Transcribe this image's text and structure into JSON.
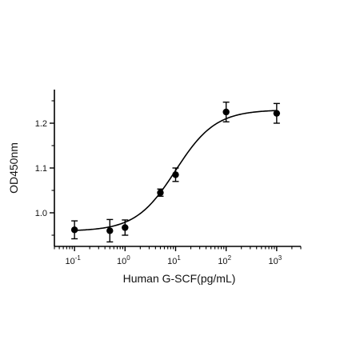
{
  "chart_data": {
    "type": "scatter",
    "title": "",
    "xlabel": "Human G-SCF(pg/mL)",
    "ylabel": "OD450nm",
    "x_scale": "log",
    "xlim": [
      0.04,
      3000
    ],
    "ylim": [
      0.925,
      1.275
    ],
    "x_ticks": [
      {
        "value": 0.1,
        "base": "10",
        "exp": "-1"
      },
      {
        "value": 1,
        "base": "10",
        "exp": "0"
      },
      {
        "value": 10,
        "base": "10",
        "exp": "1"
      },
      {
        "value": 100,
        "base": "10",
        "exp": "2"
      },
      {
        "value": 1000,
        "base": "10",
        "exp": "3"
      }
    ],
    "y_ticks": [
      {
        "value": 1.0,
        "label": "1.0"
      },
      {
        "value": 1.1,
        "label": "1.1"
      },
      {
        "value": 1.2,
        "label": "1.2"
      }
    ],
    "grid": false,
    "legend": "none",
    "series": [
      {
        "points": [
          {
            "x": 0.1,
            "y": 0.962,
            "err": 0.02
          },
          {
            "x": 0.5,
            "y": 0.96,
            "err": 0.025
          },
          {
            "x": 1,
            "y": 0.967,
            "err": 0.017
          },
          {
            "x": 5,
            "y": 1.045,
            "err": 0.008
          },
          {
            "x": 10,
            "y": 1.085,
            "err": 0.015
          },
          {
            "x": 100,
            "y": 1.225,
            "err": 0.022
          },
          {
            "x": 1000,
            "y": 1.222,
            "err": 0.022
          }
        ]
      }
    ],
    "fit_curve": {
      "model": "4PL",
      "bottom": 0.959,
      "top": 1.23,
      "ec50": 10,
      "hill": 1.1
    },
    "colors": {
      "marker": "#000000",
      "axis": "#000000"
    }
  }
}
